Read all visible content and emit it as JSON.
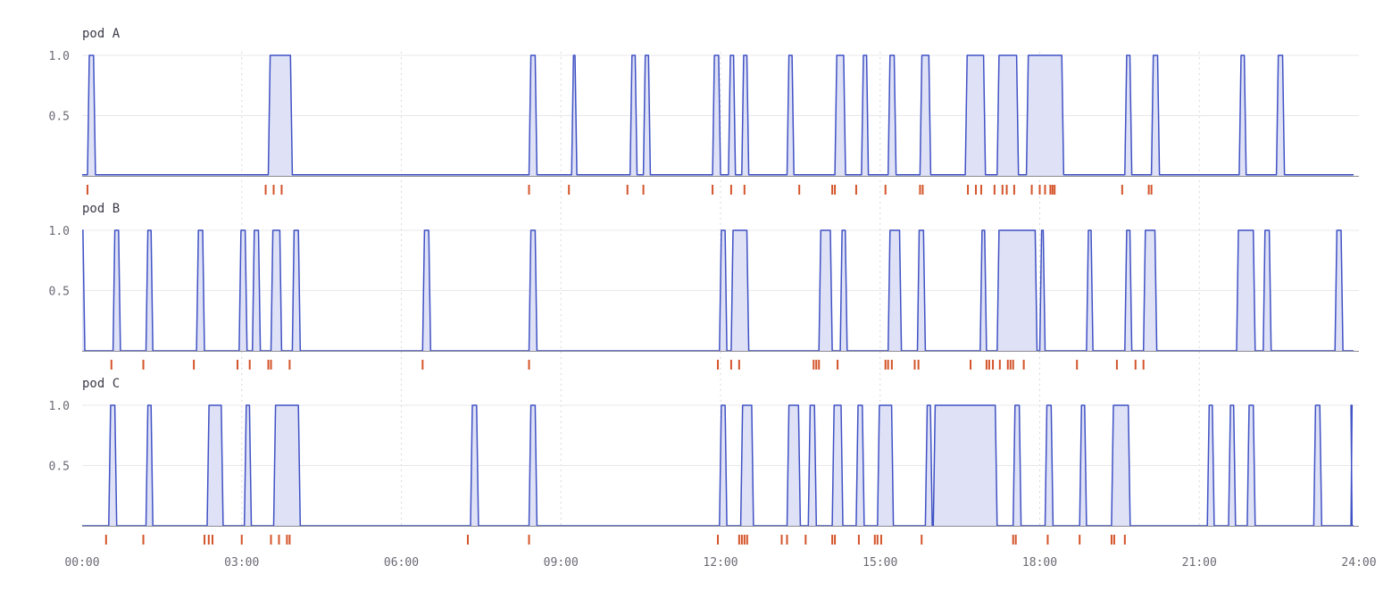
{
  "colors": {
    "line": "#3f51c4",
    "fill": "#dfe2f6",
    "event": "#d4542a",
    "grid": "#e8e8ec",
    "vgrid": "#d8d8dc",
    "axis": "#8a8a92",
    "label": "#3a3a48",
    "tick": "#6a6a74"
  },
  "chart_data": {
    "type": "area",
    "x_unit": "hours",
    "xlim": [
      0,
      24
    ],
    "ylim": [
      0,
      1.0
    ],
    "x_tick_labels": [
      "00:00",
      "03:00",
      "06:00",
      "09:00",
      "12:00",
      "15:00",
      "18:00",
      "21:00",
      "24:00"
    ],
    "y_tick_labels": [
      "0.5",
      "1.0"
    ],
    "panels": [
      {
        "title": "pod A",
        "baseline": 0.01,
        "busy_intervals": [
          [
            0.1,
            0.25
          ],
          [
            3.5,
            3.95
          ],
          [
            8.4,
            8.55
          ],
          [
            9.2,
            9.3
          ],
          [
            10.3,
            10.43
          ],
          [
            10.55,
            10.68
          ],
          [
            11.85,
            12.0
          ],
          [
            12.15,
            12.28
          ],
          [
            12.4,
            12.53
          ],
          [
            13.25,
            13.38
          ],
          [
            14.15,
            14.35
          ],
          [
            14.65,
            14.78
          ],
          [
            15.15,
            15.3
          ],
          [
            15.75,
            15.95
          ],
          [
            16.6,
            16.98
          ],
          [
            17.2,
            17.6
          ],
          [
            17.75,
            18.45
          ],
          [
            19.6,
            19.73
          ],
          [
            20.1,
            20.25
          ],
          [
            21.75,
            21.88
          ],
          [
            22.45,
            22.6
          ]
        ],
        "events": [
          0.1,
          3.45,
          3.6,
          3.75,
          8.4,
          9.15,
          10.25,
          10.55,
          11.85,
          12.2,
          12.45,
          13.48,
          14.1,
          14.15,
          14.55,
          15.1,
          15.75,
          15.8,
          16.65,
          16.8,
          16.9,
          17.15,
          17.3,
          17.38,
          17.52,
          17.85,
          18.0,
          18.1,
          18.2,
          18.24,
          18.28,
          19.55,
          20.05,
          20.1
        ]
      },
      {
        "title": "pod B",
        "baseline": 0.0,
        "busy_intervals": [
          [
            0.0,
            0.05
          ],
          [
            0.58,
            0.72
          ],
          [
            1.2,
            1.33
          ],
          [
            2.15,
            2.3
          ],
          [
            2.95,
            3.1
          ],
          [
            3.2,
            3.35
          ],
          [
            3.55,
            3.75
          ],
          [
            3.95,
            4.1
          ],
          [
            6.4,
            6.55
          ],
          [
            8.4,
            8.55
          ],
          [
            11.98,
            12.12
          ],
          [
            12.2,
            12.53
          ],
          [
            13.85,
            14.1
          ],
          [
            14.25,
            14.38
          ],
          [
            15.15,
            15.4
          ],
          [
            15.7,
            15.85
          ],
          [
            16.88,
            17.0
          ],
          [
            17.2,
            17.95
          ],
          [
            18.0,
            18.1
          ],
          [
            18.88,
            19.0
          ],
          [
            19.6,
            19.73
          ],
          [
            19.95,
            20.2
          ],
          [
            21.7,
            22.05
          ],
          [
            22.2,
            22.35
          ],
          [
            23.55,
            23.7
          ]
        ],
        "events": [
          0.55,
          1.15,
          2.1,
          2.92,
          3.15,
          3.5,
          3.55,
          3.9,
          6.4,
          8.4,
          11.95,
          12.2,
          12.35,
          13.75,
          13.8,
          13.85,
          14.2,
          15.1,
          15.15,
          15.22,
          15.65,
          15.72,
          16.7,
          17.0,
          17.05,
          17.12,
          17.25,
          17.4,
          17.45,
          17.5,
          17.7,
          18.7,
          19.45,
          19.8,
          19.95
        ]
      },
      {
        "title": "pod C",
        "baseline": 0.0,
        "busy_intervals": [
          [
            0.5,
            0.65
          ],
          [
            1.2,
            1.33
          ],
          [
            2.35,
            2.65
          ],
          [
            3.05,
            3.18
          ],
          [
            3.6,
            4.1
          ],
          [
            7.3,
            7.45
          ],
          [
            8.4,
            8.55
          ],
          [
            11.98,
            12.12
          ],
          [
            12.38,
            12.62
          ],
          [
            13.25,
            13.5
          ],
          [
            13.65,
            13.8
          ],
          [
            14.1,
            14.3
          ],
          [
            14.55,
            14.7
          ],
          [
            14.95,
            15.25
          ],
          [
            15.85,
            15.98
          ],
          [
            16.0,
            17.2
          ],
          [
            17.5,
            17.65
          ],
          [
            18.1,
            18.25
          ],
          [
            18.75,
            18.88
          ],
          [
            19.35,
            19.7
          ],
          [
            21.15,
            21.28
          ],
          [
            21.55,
            21.68
          ],
          [
            21.9,
            22.05
          ],
          [
            23.15,
            23.3
          ],
          [
            23.85,
            23.87
          ]
        ],
        "events": [
          0.45,
          1.15,
          2.3,
          2.38,
          2.45,
          3.0,
          3.55,
          3.7,
          3.85,
          3.9,
          7.25,
          8.4,
          11.95,
          12.35,
          12.4,
          12.45,
          12.5,
          13.15,
          13.25,
          13.6,
          14.1,
          14.15,
          14.6,
          14.9,
          14.95,
          15.02,
          15.78,
          17.5,
          17.55,
          18.15,
          18.75,
          19.35,
          19.4,
          19.6
        ]
      }
    ]
  }
}
